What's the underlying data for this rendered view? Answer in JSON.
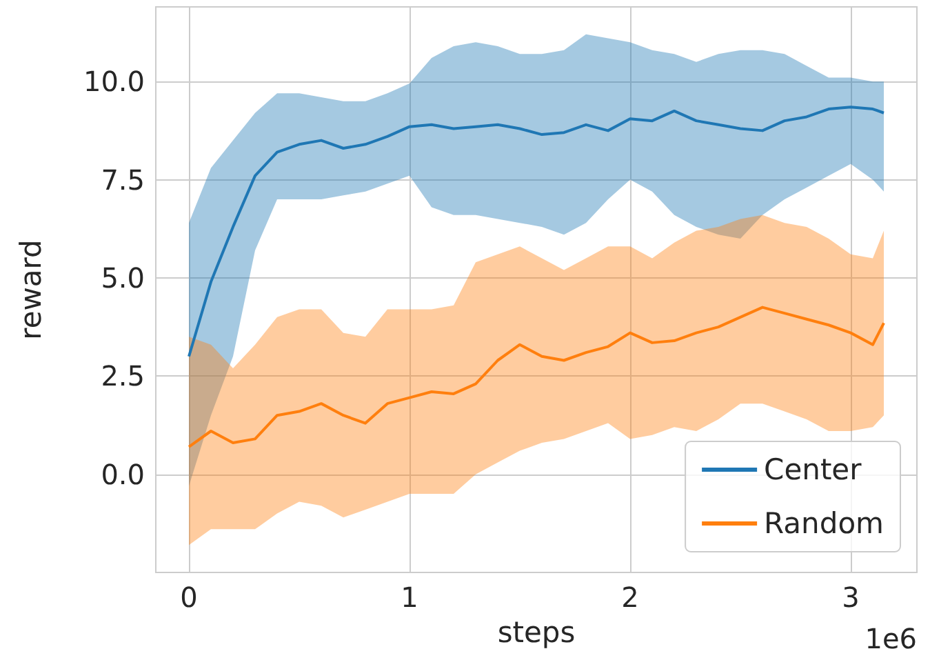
{
  "chart_data": {
    "type": "line",
    "xlabel": "steps",
    "ylabel": "reward",
    "annotations": [
      "1e6"
    ],
    "xlim": [
      -0.15,
      3.3
    ],
    "xticks": [
      0,
      1,
      2,
      3
    ],
    "ylim": [
      -2.5,
      11.9
    ],
    "yticks": [
      {
        "value": 0,
        "label": "0.0"
      },
      {
        "value": 2.5,
        "label": "2.5"
      },
      {
        "value": 5,
        "label": "5.0"
      },
      {
        "value": 7.5,
        "label": "7.5"
      },
      {
        "value": 10,
        "label": "10.0"
      }
    ],
    "grid": true,
    "legend": "bottom right",
    "marker": "none",
    "line_style": "solid",
    "series": [
      {
        "name": "Center",
        "color": "#1f77b4",
        "x": [
          0,
          0.1,
          0.2,
          0.3,
          0.4,
          0.5,
          0.6,
          0.7,
          0.8,
          0.9,
          1.0,
          1.1,
          1.2,
          1.3,
          1.4,
          1.5,
          1.6,
          1.7,
          1.8,
          1.9,
          2.0,
          2.1,
          2.2,
          2.3,
          2.4,
          2.5,
          2.6,
          2.7,
          2.8,
          2.9,
          3.0,
          3.1,
          3.15
        ],
        "values": [
          3.0,
          4.9,
          6.3,
          7.6,
          8.2,
          8.4,
          8.5,
          8.3,
          8.4,
          8.6,
          8.85,
          8.9,
          8.8,
          8.85,
          8.9,
          8.8,
          8.65,
          8.7,
          8.9,
          8.75,
          9.05,
          9.0,
          9.25,
          9.0,
          8.9,
          8.8,
          8.75,
          9.0,
          9.1,
          9.3,
          9.35,
          9.3,
          9.2
        ],
        "lower": [
          -0.3,
          1.5,
          3.0,
          5.7,
          7.0,
          7.0,
          7.0,
          7.1,
          7.2,
          7.4,
          7.6,
          6.8,
          6.6,
          6.6,
          6.5,
          6.4,
          6.3,
          6.1,
          6.4,
          7.0,
          7.5,
          7.2,
          6.6,
          6.3,
          6.1,
          6.0,
          6.6,
          7.0,
          7.3,
          7.6,
          7.9,
          7.5,
          7.2
        ],
        "upper": [
          6.4,
          7.8,
          8.5,
          9.2,
          9.7,
          9.7,
          9.6,
          9.5,
          9.5,
          9.7,
          9.95,
          10.6,
          10.9,
          11.0,
          10.9,
          10.7,
          10.7,
          10.8,
          11.2,
          11.1,
          11.0,
          10.8,
          10.7,
          10.5,
          10.7,
          10.8,
          10.8,
          10.7,
          10.4,
          10.1,
          10.1,
          10.0,
          10.0
        ]
      },
      {
        "name": "Random",
        "color": "#ff7f0e",
        "x": [
          0,
          0.1,
          0.2,
          0.3,
          0.4,
          0.5,
          0.6,
          0.7,
          0.8,
          0.9,
          1.0,
          1.1,
          1.2,
          1.3,
          1.4,
          1.5,
          1.6,
          1.7,
          1.8,
          1.9,
          2.0,
          2.1,
          2.2,
          2.3,
          2.4,
          2.5,
          2.6,
          2.7,
          2.8,
          2.9,
          3.0,
          3.1,
          3.15
        ],
        "values": [
          0.7,
          1.1,
          0.8,
          0.9,
          1.5,
          1.6,
          1.8,
          1.5,
          1.3,
          1.8,
          1.95,
          2.1,
          2.05,
          2.3,
          2.9,
          3.3,
          3.0,
          2.9,
          3.1,
          3.25,
          3.6,
          3.35,
          3.4,
          3.6,
          3.75,
          4.0,
          4.25,
          4.1,
          3.95,
          3.8,
          3.6,
          3.3,
          3.85
        ],
        "lower": [
          -1.8,
          -1.4,
          -1.4,
          -1.4,
          -1.0,
          -0.7,
          -0.8,
          -1.1,
          -0.9,
          -0.7,
          -0.5,
          -0.5,
          -0.5,
          0.0,
          0.3,
          0.6,
          0.8,
          0.9,
          1.1,
          1.3,
          0.9,
          1.0,
          1.2,
          1.1,
          1.4,
          1.8,
          1.8,
          1.6,
          1.4,
          1.1,
          1.1,
          1.2,
          1.5
        ],
        "upper": [
          3.5,
          3.3,
          2.7,
          3.3,
          4.0,
          4.2,
          4.2,
          3.6,
          3.5,
          4.2,
          4.2,
          4.2,
          4.3,
          5.4,
          5.6,
          5.8,
          5.5,
          5.2,
          5.5,
          5.8,
          5.8,
          5.5,
          5.9,
          6.2,
          6.3,
          6.5,
          6.6,
          6.4,
          6.3,
          6.0,
          5.6,
          5.5,
          6.2
        ]
      }
    ]
  }
}
